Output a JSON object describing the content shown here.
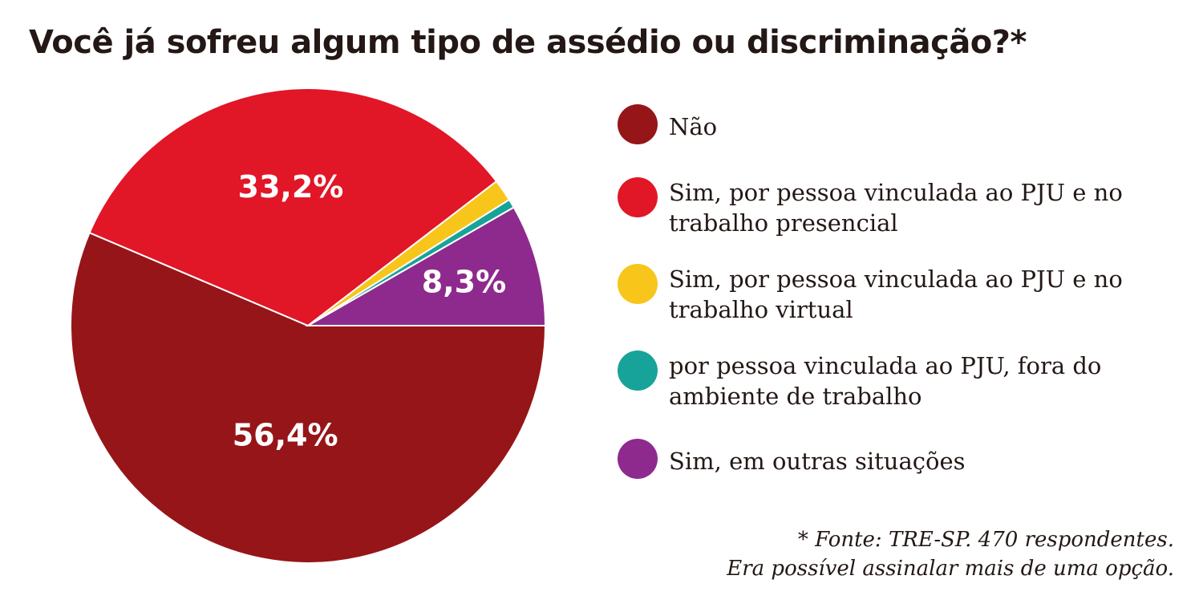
{
  "title": "Você já sofreu algum tipo de assédio ou discriminação?*",
  "chart_data": {
    "type": "pie",
    "title": "Você já sofreu algum tipo de assédio ou discriminação?*",
    "slices": [
      {
        "label": "Não",
        "value": 56.4,
        "display": "56,4%",
        "color": "#961518"
      },
      {
        "label": "Sim, por pessoa vinculada ao PJU e no trabalho presencial",
        "value": 33.2,
        "display": "33,2%",
        "color": "#e11627"
      },
      {
        "label": "Sim, por pessoa vinculada ao PJU e no trabalho virtual",
        "value": 1.5,
        "display": "",
        "color": "#f8c51b"
      },
      {
        "label": "por pessoa vinculada ao PJU, fora do ambiente de trabalho",
        "value": 0.6,
        "display": "",
        "color": "#17a39a"
      },
      {
        "label": "Sim, em outras situações",
        "value": 8.3,
        "display": "8,3%",
        "color": "#8e2a8d"
      }
    ],
    "legend_position": "right"
  },
  "footnote": {
    "line1": "* Fonte: TRE-SP. 470 respondentes.",
    "line2": "Era possível assinalar mais de uma opção."
  }
}
